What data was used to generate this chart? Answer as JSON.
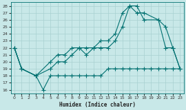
{
  "xlabel": "Humidex (Indice chaleur)",
  "bg_color": "#c8e8e8",
  "grid_color": "#a8d0d0",
  "line_color": "#007070",
  "xlim": [
    -0.5,
    23.5
  ],
  "ylim": [
    15.5,
    28.5
  ],
  "xticks": [
    0,
    1,
    2,
    3,
    4,
    5,
    6,
    7,
    8,
    9,
    10,
    11,
    12,
    13,
    14,
    15,
    16,
    17,
    18,
    19,
    20,
    21,
    22,
    23
  ],
  "yticks": [
    16,
    17,
    18,
    19,
    20,
    21,
    22,
    23,
    24,
    25,
    26,
    27,
    28
  ],
  "curve_top_x": [
    0,
    1,
    3,
    5,
    6,
    7,
    8,
    9,
    10,
    11,
    12,
    13,
    14,
    15,
    16,
    17,
    18,
    20,
    21,
    22,
    23
  ],
  "curve_top_y": [
    22,
    19,
    18,
    20,
    21,
    21,
    22,
    22,
    22,
    22,
    23,
    23,
    24,
    27,
    28,
    28,
    26,
    26,
    25,
    22,
    19
  ],
  "curve_mid_x": [
    0,
    1,
    3,
    5,
    6,
    7,
    8,
    9,
    10,
    11,
    12,
    13,
    14,
    15,
    16,
    17,
    18,
    20,
    21,
    22,
    23
  ],
  "curve_mid_y": [
    22,
    19,
    18,
    19,
    20,
    20,
    21,
    22,
    21,
    22,
    22,
    22,
    23,
    25,
    28,
    27,
    27,
    26,
    22,
    22,
    19
  ],
  "curve_bot_x": [
    0,
    1,
    3,
    4,
    5,
    6,
    7,
    8,
    9,
    10,
    11,
    12,
    13,
    14,
    15,
    16,
    17,
    18,
    19,
    20,
    21,
    22,
    23
  ],
  "curve_bot_y": [
    22,
    19,
    18,
    16,
    18,
    18,
    18,
    18,
    18,
    18,
    18,
    18,
    19,
    19,
    19,
    19,
    19,
    19,
    19,
    19,
    19,
    19,
    19
  ]
}
